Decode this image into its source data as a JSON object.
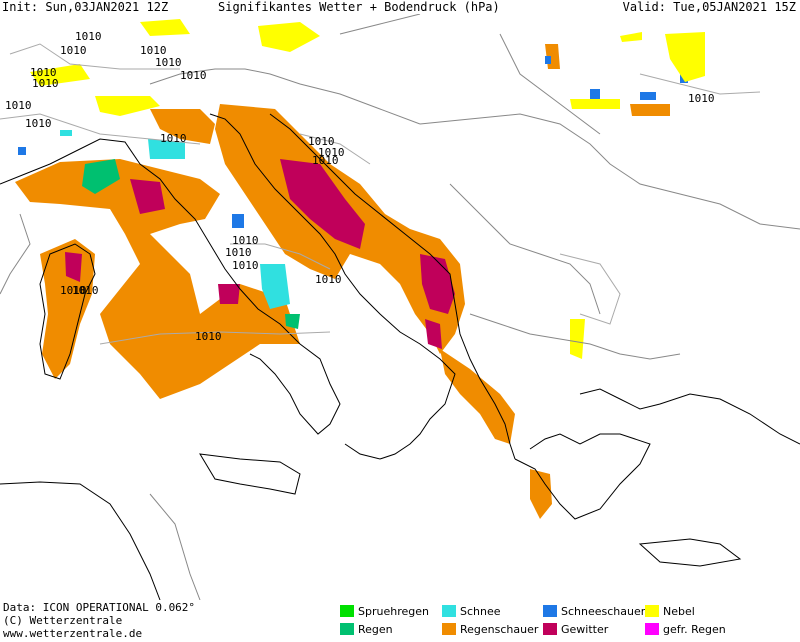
{
  "header": {
    "init": "Init: Sun,03JAN2021 12Z",
    "title": "Signifikantes Wetter  +  Bodendruck (hPa)",
    "valid": "Valid: Tue,05JAN2021 15Z"
  },
  "map": {
    "isobar_label": "1010",
    "isobar_labels": [
      "1010",
      "1010",
      "1010",
      "1010",
      "1010",
      "1010",
      "1010",
      "1010",
      "1010",
      "1010",
      "1010",
      "1010",
      "1010",
      "1010",
      "1010",
      "1010",
      "1010",
      "1010",
      "1010",
      "1010",
      "1010"
    ]
  },
  "footer": {
    "data": "Data: ICON OPERATIONAL 0.062°",
    "copyright": "(C) Wetterzentrale",
    "url": "www.wetterzentrale.de"
  },
  "legend": [
    {
      "label": "Spruehregen",
      "color": "#00e000"
    },
    {
      "label": "Regen",
      "color": "#00c070"
    },
    {
      "label": "Schnee",
      "color": "#30e0e0"
    },
    {
      "label": "Regenschauer",
      "color": "#f08c00"
    },
    {
      "label": "Schneeschauer",
      "color": "#1e78e6"
    },
    {
      "label": "Gewitter",
      "color": "#c0005a"
    },
    {
      "label": "Nebel",
      "color": "#ffff00"
    },
    {
      "label": "gefr. Regen",
      "color": "#ff00ff"
    }
  ]
}
